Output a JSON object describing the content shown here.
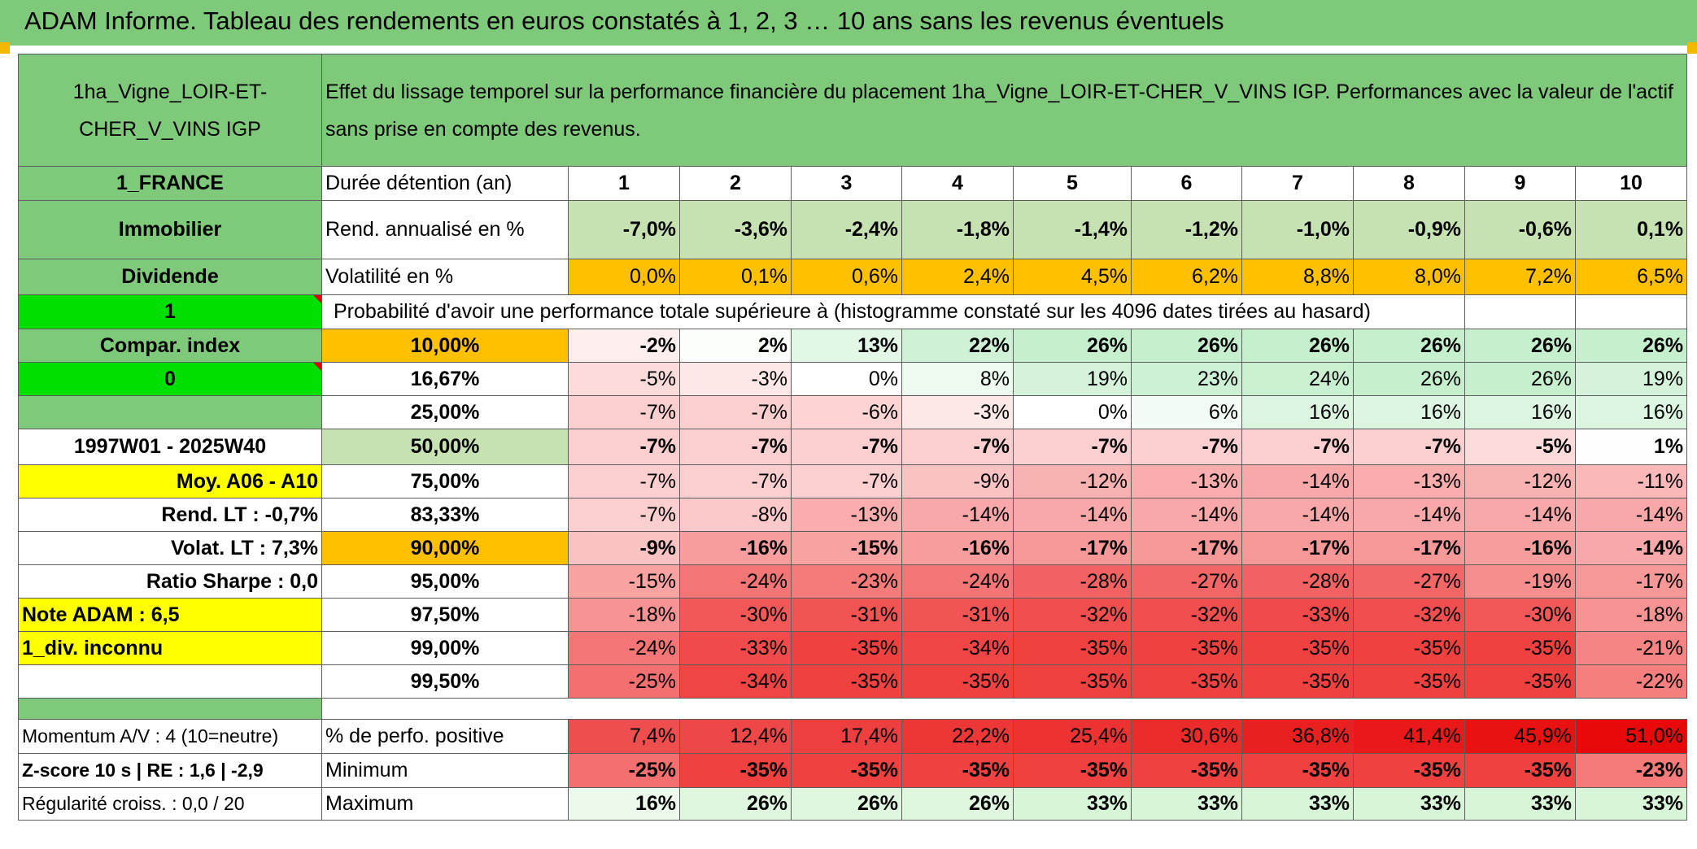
{
  "title": "ADAM Informe. Tableau des rendements en euros constatés à 1, 2, 3 … 10 ans sans les revenus éventuels",
  "asset_name": "1ha_Vigne_LOIR-ET-CHER_V_VINS IGP",
  "header_text": "Effet du lissage temporel sur la performance financière du placement 1ha_Vigne_LOIR-ET-CHER_V_VINS IGP. Performances avec la valeur de l'actif sans prise en compte des revenus.",
  "left_panel": {
    "country": "1_FRANCE",
    "category": "Immobilier",
    "income_type": "Dividende",
    "flag_value_1": "1",
    "compar_label": "Compar. index",
    "flag_value_0": "0",
    "period": "1997W01 - 2025W40",
    "moy": "Moy. A06 - A10",
    "rend_lt": "Rend. LT :   -0,7%",
    "volat_lt": "Volat. LT :   7,3%",
    "sharpe": "Ratio Sharpe :    0,0",
    "note": "Note ADAM : 6,5",
    "div": "1_div. inconnu",
    "momentum": "Momentum A/V : 4 (10=neutre)",
    "zscore": "Z-score 10 s | RE : 1,6 | -2,9",
    "regularite": "Régularité croiss. : 0,0 / 20"
  },
  "row_labels": {
    "duree": "Durée détention (an)",
    "rend": "Rend. annualisé en %",
    "volat": "Volatilité en %",
    "proba": "Probabilité d'avoir une performance totale supérieure à (histogramme constaté sur les 4096 dates tirées au hasard)",
    "positive": "% de perfo. positive",
    "minimum": "Minimum",
    "maximum": "Maximum"
  },
  "years": [
    "1",
    "2",
    "3",
    "4",
    "5",
    "6",
    "7",
    "8",
    "9",
    "10"
  ],
  "rend": [
    "-7,0%",
    "-3,6%",
    "-2,4%",
    "-1,8%",
    "-1,4%",
    "-1,2%",
    "-1,0%",
    "-0,9%",
    "-0,6%",
    "0,1%"
  ],
  "volat": [
    "0,0%",
    "0,1%",
    "0,6%",
    "2,4%",
    "4,5%",
    "6,2%",
    "8,8%",
    "8,0%",
    "7,2%",
    "6,5%"
  ],
  "percentile_rows": [
    {
      "p": "10,00%",
      "vals": [
        "-2%",
        "2%",
        "13%",
        "22%",
        "26%",
        "26%",
        "26%",
        "26%",
        "26%",
        "26%"
      ]
    },
    {
      "p": "16,67%",
      "vals": [
        "-5%",
        "-3%",
        "0%",
        "8%",
        "19%",
        "23%",
        "24%",
        "26%",
        "26%",
        "19%"
      ]
    },
    {
      "p": "25,00%",
      "vals": [
        "-7%",
        "-7%",
        "-6%",
        "-3%",
        "0%",
        "6%",
        "16%",
        "16%",
        "16%",
        "16%"
      ]
    },
    {
      "p": "50,00%",
      "vals": [
        "-7%",
        "-7%",
        "-7%",
        "-7%",
        "-7%",
        "-7%",
        "-7%",
        "-7%",
        "-5%",
        "1%"
      ]
    },
    {
      "p": "75,00%",
      "vals": [
        "-7%",
        "-7%",
        "-7%",
        "-9%",
        "-12%",
        "-13%",
        "-14%",
        "-13%",
        "-12%",
        "-11%"
      ]
    },
    {
      "p": "83,33%",
      "vals": [
        "-7%",
        "-8%",
        "-13%",
        "-14%",
        "-14%",
        "-14%",
        "-14%",
        "-14%",
        "-14%",
        "-14%"
      ]
    },
    {
      "p": "90,00%",
      "vals": [
        "-9%",
        "-16%",
        "-15%",
        "-16%",
        "-17%",
        "-17%",
        "-17%",
        "-17%",
        "-16%",
        "-14%"
      ]
    },
    {
      "p": "95,00%",
      "vals": [
        "-15%",
        "-24%",
        "-23%",
        "-24%",
        "-28%",
        "-27%",
        "-28%",
        "-27%",
        "-19%",
        "-17%"
      ]
    },
    {
      "p": "97,50%",
      "vals": [
        "-18%",
        "-30%",
        "-31%",
        "-31%",
        "-32%",
        "-32%",
        "-33%",
        "-32%",
        "-30%",
        "-18%"
      ]
    },
    {
      "p": "99,00%",
      "vals": [
        "-24%",
        "-33%",
        "-35%",
        "-34%",
        "-35%",
        "-35%",
        "-35%",
        "-35%",
        "-35%",
        "-21%"
      ]
    },
    {
      "p": "99,50%",
      "vals": [
        "-25%",
        "-34%",
        "-35%",
        "-35%",
        "-35%",
        "-35%",
        "-35%",
        "-35%",
        "-35%",
        "-22%"
      ]
    }
  ],
  "positive": [
    "7,4%",
    "12,4%",
    "17,4%",
    "22,2%",
    "25,4%",
    "30,6%",
    "36,8%",
    "41,4%",
    "45,9%",
    "51,0%"
  ],
  "minimum": [
    "-25%",
    "-35%",
    "-35%",
    "-35%",
    "-35%",
    "-35%",
    "-35%",
    "-35%",
    "-35%",
    "-23%"
  ],
  "maximum": [
    "16%",
    "26%",
    "26%",
    "26%",
    "33%",
    "33%",
    "33%",
    "33%",
    "33%",
    "33%"
  ],
  "colors": {
    "green": "#7fc97a",
    "light_green": "#c7e2b2",
    "bright_green": "#00e000",
    "orange": "#ffc000",
    "yellow": "#ffff00",
    "red_text": "#e0152a"
  }
}
